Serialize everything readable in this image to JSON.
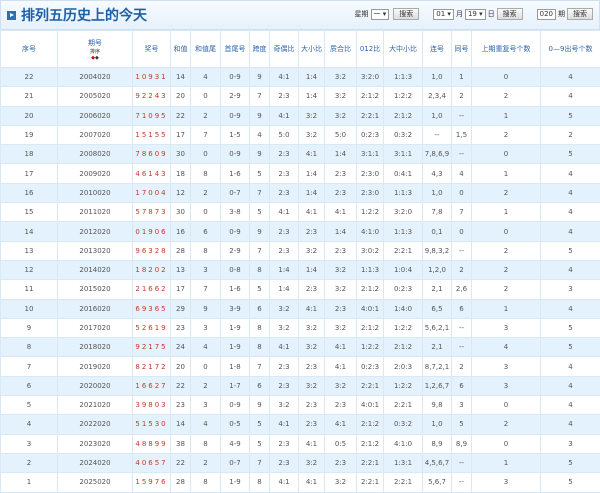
{
  "header": {
    "title": "排列五历史上的今天",
    "weekday_label": "星期",
    "weekday_value": "一",
    "search1": "搜索",
    "month_value": "01",
    "month_label": "月",
    "day_value": "19",
    "day_label": "日",
    "search2": "搜索",
    "issue_value": "020",
    "issue_label": "期",
    "search3": "搜索"
  },
  "columns": [
    "序号",
    "期号",
    "奖号",
    "和值",
    "和值尾",
    "首尾号",
    "跨度",
    "奇偶比",
    "大小比",
    "质合比",
    "012比",
    "大中小比",
    "连号",
    "同号",
    "上期重复号个数",
    "0—9出号个数"
  ],
  "sort_label": "排序",
  "rows": [
    [
      "22",
      "2004020",
      "10931",
      "14",
      "4",
      "0-9",
      "9",
      "4:1",
      "1:4",
      "3:2",
      "3:2:0",
      "1:1:3",
      "1,0",
      "1",
      "0",
      "4"
    ],
    [
      "21",
      "2005020",
      "92243",
      "20",
      "0",
      "2-9",
      "7",
      "2:3",
      "1:4",
      "3:2",
      "2:1:2",
      "1:2:2",
      "2,3,4",
      "2",
      "2",
      "4"
    ],
    [
      "20",
      "2006020",
      "71095",
      "22",
      "2",
      "0-9",
      "9",
      "4:1",
      "3:2",
      "3:2",
      "2:2:1",
      "2:1:2",
      "1,0",
      "--",
      "1",
      "5"
    ],
    [
      "19",
      "2007020",
      "15155",
      "17",
      "7",
      "1-5",
      "4",
      "5:0",
      "3:2",
      "5:0",
      "0:2:3",
      "0:3:2",
      "--",
      "1,5",
      "2",
      "2"
    ],
    [
      "18",
      "2008020",
      "78609",
      "30",
      "0",
      "0-9",
      "9",
      "2:3",
      "4:1",
      "1:4",
      "3:1:1",
      "3:1:1",
      "7,8,6,9",
      "--",
      "0",
      "5"
    ],
    [
      "17",
      "2009020",
      "46143",
      "18",
      "8",
      "1-6",
      "5",
      "2:3",
      "1:4",
      "2:3",
      "2:3:0",
      "0:4:1",
      "4,3",
      "4",
      "1",
      "4"
    ],
    [
      "16",
      "2010020",
      "17004",
      "12",
      "2",
      "0-7",
      "7",
      "2:3",
      "1:4",
      "2:3",
      "2:3:0",
      "1:1:3",
      "1,0",
      "0",
      "2",
      "4"
    ],
    [
      "15",
      "2011020",
      "57873",
      "30",
      "0",
      "3-8",
      "5",
      "4:1",
      "4:1",
      "4:1",
      "1:2:2",
      "3:2:0",
      "7,8",
      "7",
      "1",
      "4"
    ],
    [
      "14",
      "2012020",
      "01906",
      "16",
      "6",
      "0-9",
      "9",
      "2:3",
      "2:3",
      "1:4",
      "4:1:0",
      "1:1:3",
      "0,1",
      "0",
      "0",
      "4"
    ],
    [
      "13",
      "2013020",
      "96328",
      "28",
      "8",
      "2-9",
      "7",
      "2:3",
      "3:2",
      "2:3",
      "3:0:2",
      "2:2:1",
      "9,8,3,2",
      "--",
      "2",
      "5"
    ],
    [
      "12",
      "2014020",
      "18202",
      "13",
      "3",
      "0-8",
      "8",
      "1:4",
      "1:4",
      "3:2",
      "1:1:3",
      "1:0:4",
      "1,2,0",
      "2",
      "2",
      "4"
    ],
    [
      "11",
      "2015020",
      "21662",
      "17",
      "7",
      "1-6",
      "5",
      "1:4",
      "2:3",
      "3:2",
      "2:1:2",
      "0:2:3",
      "2,1",
      "2,6",
      "2",
      "3"
    ],
    [
      "10",
      "2016020",
      "69365",
      "29",
      "9",
      "3-9",
      "6",
      "3:2",
      "4:1",
      "2:3",
      "4:0:1",
      "1:4:0",
      "6,5",
      "6",
      "1",
      "4"
    ],
    [
      "9",
      "2017020",
      "52619",
      "23",
      "3",
      "1-9",
      "8",
      "3:2",
      "3:2",
      "3:2",
      "2:1:2",
      "1:2:2",
      "5,6,2,1",
      "--",
      "3",
      "5"
    ],
    [
      "8",
      "2018020",
      "92175",
      "24",
      "4",
      "1-9",
      "8",
      "4:1",
      "3:2",
      "4:1",
      "1:2:2",
      "2:1:2",
      "2,1",
      "--",
      "4",
      "5"
    ],
    [
      "7",
      "2019020",
      "82172",
      "20",
      "0",
      "1-8",
      "7",
      "2:3",
      "2:3",
      "4:1",
      "0:2:3",
      "2:0:3",
      "8,7,2,1",
      "2",
      "3",
      "4"
    ],
    [
      "6",
      "2020020",
      "16627",
      "22",
      "2",
      "1-7",
      "6",
      "2:3",
      "3:2",
      "3:2",
      "2:2:1",
      "1:2:2",
      "1,2,6,7",
      "6",
      "3",
      "4"
    ],
    [
      "5",
      "2021020",
      "39803",
      "23",
      "3",
      "0-9",
      "9",
      "3:2",
      "2:3",
      "2:3",
      "4:0:1",
      "2:2:1",
      "9,8",
      "3",
      "0",
      "4"
    ],
    [
      "4",
      "2022020",
      "51530",
      "14",
      "4",
      "0-5",
      "5",
      "4:1",
      "2:3",
      "4:1",
      "2:1:2",
      "0:3:2",
      "1,0",
      "5",
      "2",
      "4"
    ],
    [
      "3",
      "2023020",
      "48899",
      "38",
      "8",
      "4-9",
      "5",
      "2:3",
      "4:1",
      "0:5",
      "2:1:2",
      "4:1:0",
      "8,9",
      "8,9",
      "0",
      "3"
    ],
    [
      "2",
      "2024020",
      "40657",
      "22",
      "2",
      "0-7",
      "7",
      "2:3",
      "3:2",
      "2:3",
      "2:2:1",
      "1:3:1",
      "4,5,6,7",
      "--",
      "1",
      "5"
    ],
    [
      "1",
      "2025020",
      "15976",
      "28",
      "8",
      "1-9",
      "8",
      "4:1",
      "4:1",
      "3:2",
      "2:2:1",
      "2:2:1",
      "5,6,7",
      "--",
      "3",
      "5"
    ]
  ],
  "colors": {
    "title": "#1d5fa8",
    "header_text": "#2b66b0",
    "prize_number": "#c0392b",
    "row_alt": "#e4f2fd"
  }
}
